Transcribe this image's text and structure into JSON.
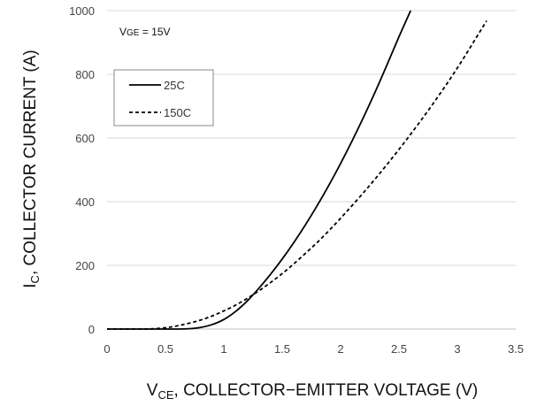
{
  "chart_data": {
    "type": "line",
    "xlabel": {
      "main": "V",
      "sub": "CE",
      "rest": ", COLLECTOR−EMITTER VOLTAGE (V)"
    },
    "ylabel": {
      "main": "I",
      "sub": "C",
      "rest": ", COLLECTOR CURRENT (A)"
    },
    "annotation": {
      "main": "V",
      "sub": "GE",
      "rest": " = 15V"
    },
    "xlim": [
      0,
      3.5
    ],
    "ylim": [
      0,
      1000
    ],
    "x_ticks": [
      "0",
      "0.5",
      "1",
      "1.5",
      "2",
      "2.5",
      "3",
      "3.5"
    ],
    "y_ticks": [
      "0",
      "200",
      "400",
      "600",
      "800",
      "1000"
    ],
    "grid": "horizontal",
    "legend_position": "upper-left",
    "series": [
      {
        "name": "25C",
        "style": "solid",
        "color": "#000000",
        "x": [
          0,
          0.5,
          0.6,
          0.7,
          0.8,
          0.9,
          1.0,
          1.1,
          1.2,
          1.3,
          1.4,
          1.5,
          1.6,
          1.7,
          1.8,
          1.9,
          2.0,
          2.1,
          2.2,
          2.3,
          2.4,
          2.5,
          2.6
        ],
        "y": [
          0,
          0,
          0,
          1,
          5,
          14,
          30,
          55,
          88,
          128,
          172,
          220,
          272,
          328,
          388,
          452,
          520,
          592,
          668,
          748,
          832,
          918,
          1000
        ]
      },
      {
        "name": "150C",
        "style": "dashed",
        "color": "#000000",
        "x": [
          0,
          0.3,
          0.4,
          0.5,
          0.6,
          0.7,
          0.8,
          0.9,
          1.0,
          1.1,
          1.2,
          1.3,
          1.4,
          1.5,
          1.6,
          1.7,
          1.8,
          1.9,
          2.0,
          2.2,
          2.4,
          2.6,
          2.8,
          3.0,
          3.2,
          3.25
        ],
        "y": [
          0,
          0,
          1,
          4,
          10,
          18,
          28,
          41,
          57,
          75,
          96,
          120,
          146,
          174,
          205,
          238,
          272,
          309,
          348,
          430,
          518,
          612,
          712,
          820,
          938,
          968
        ]
      }
    ]
  }
}
